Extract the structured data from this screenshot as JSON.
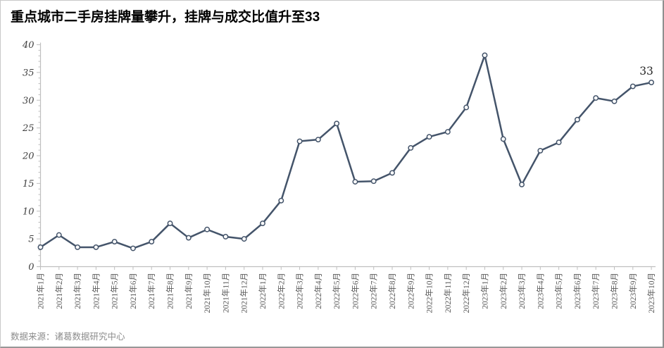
{
  "title": "重点城市二手房挂牌量攀升，挂牌与成交比值升至33",
  "footer": {
    "source_label": "数据来源：诸葛数据研究中心"
  },
  "chart_data": {
    "type": "line",
    "title": "重点城市二手房挂牌量攀升，挂牌与成交比值升至33",
    "categories": [
      "2021年1月",
      "2021年2月",
      "2021年3月",
      "2021年4月",
      "2021年5月",
      "2021年6月",
      "2021年7月",
      "2021年8月",
      "2021年9月",
      "2021年10月",
      "2021年11月",
      "2021年12月",
      "2022年1月",
      "2022年2月",
      "2022年3月",
      "2022年4月",
      "2022年5月",
      "2022年6月",
      "2022年7月",
      "2022年8月",
      "2022年9月",
      "2022年10月",
      "2022年11月",
      "2022年12月",
      "2023年1月",
      "2023年2月",
      "2023年3月",
      "2023年4月",
      "2023年5月",
      "2023年6月",
      "2023年7月",
      "2023年8月",
      "2023年9月",
      "2023年10月"
    ],
    "values": [
      3.5,
      5.7,
      3.5,
      3.5,
      4.5,
      3.3,
      4.5,
      7.8,
      5.2,
      6.7,
      5.4,
      5.0,
      7.8,
      11.9,
      22.6,
      22.9,
      25.8,
      15.3,
      15.4,
      16.9,
      21.4,
      23.4,
      24.3,
      28.7,
      38.1,
      23.0,
      14.8,
      20.9,
      22.4,
      26.5,
      30.4,
      29.8,
      32.5,
      33.2
    ],
    "last_point_label": "33",
    "xlabel": "",
    "ylabel": "",
    "ylim": [
      0,
      40
    ],
    "y_tick_interval": 5,
    "y_minor_tick_interval": 1,
    "grid": false,
    "legend": false,
    "line_color": "#44546A",
    "marker": "circle-open",
    "marker_fill": "#ffffff",
    "axis_color": "#bfbfbf",
    "x_label_color": "#595959",
    "y_label_color": "#404040"
  }
}
